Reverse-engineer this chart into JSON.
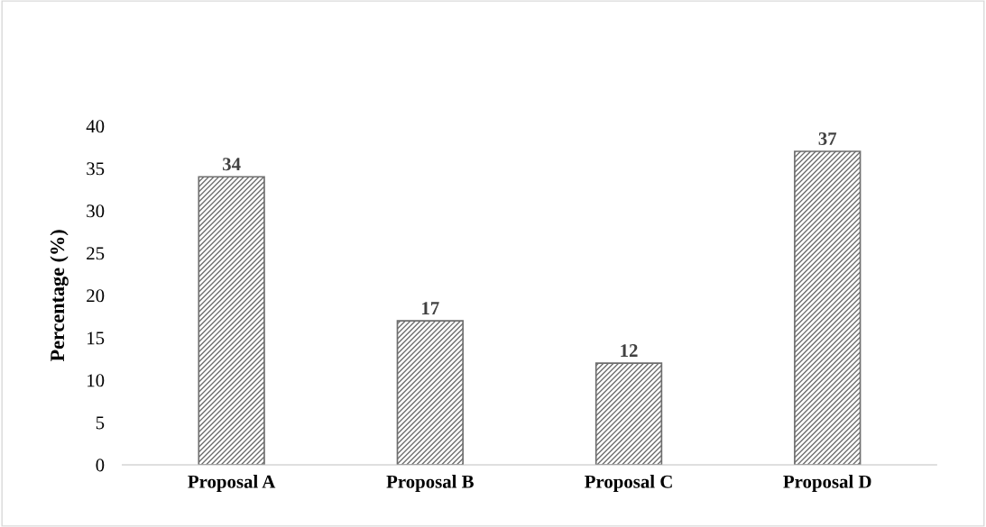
{
  "chart_data": {
    "type": "bar",
    "ylabel": "Percentage (%)",
    "categories": [
      "Proposal A",
      "Proposal B",
      "Proposal C",
      "Proposal D"
    ],
    "values": [
      34,
      17,
      12,
      37
    ],
    "color": "#6e6e6e",
    "ylim": [
      0,
      40
    ],
    "yticks": [
      0,
      5,
      10,
      15,
      20,
      25,
      30,
      35,
      40
    ],
    "grid": false,
    "data_labels": true
  }
}
